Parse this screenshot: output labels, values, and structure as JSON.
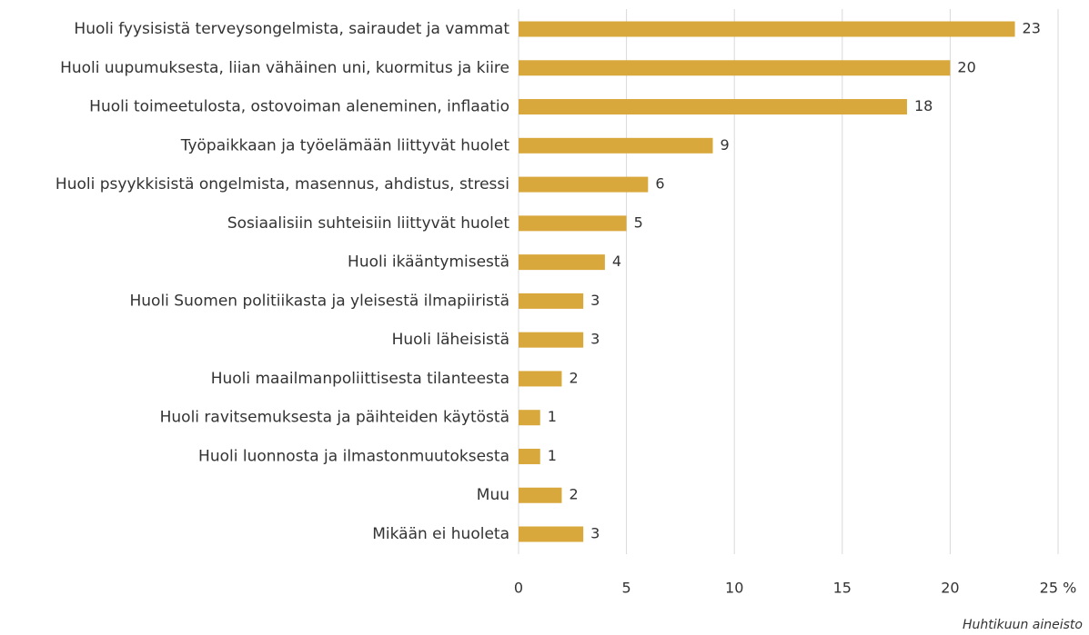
{
  "chart_data": {
    "type": "bar",
    "orientation": "horizontal",
    "categories": [
      "Huoli fyysisistä terveysongelmista, sairaudet ja vammat",
      "Huoli uupumuksesta, liian vähäinen uni, kuormitus ja kiire",
      "Huoli toimeetulosta, ostovoiman aleneminen, inflaatio",
      "Työpaikkaan ja työelämään liittyvät huolet",
      "Huoli psyykkisistä ongelmista, masennus, ahdistus, stressi",
      "Sosiaalisiin suhteisiin liittyvät huolet",
      "Huoli ikääntymisestä",
      "Huoli Suomen politiikasta ja yleisestä ilmapiiristä",
      "Huoli läheisistä",
      "Huoli maailmanpoliittisesta tilanteesta",
      "Huoli ravitsemuksesta ja päihteiden käytöstä",
      "Huoli luonnosta ja ilmastonmuutoksesta",
      "Muu",
      "Mikään ei huoleta"
    ],
    "values": [
      23,
      20,
      18,
      9,
      6,
      5,
      4,
      3,
      3,
      2,
      1,
      1,
      2,
      3
    ],
    "color": "#d9a83c",
    "xlim": [
      0,
      25
    ],
    "xticks": [
      0,
      5,
      10,
      15,
      20,
      {
        "value": 25,
        "label": "25 %"
      }
    ],
    "grid": true,
    "note": "Huhtikuun aineisto"
  }
}
